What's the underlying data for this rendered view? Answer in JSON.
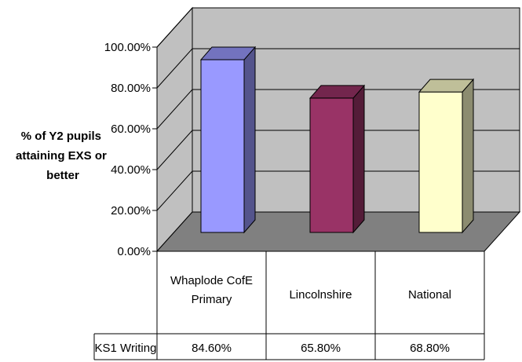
{
  "chart_data": {
    "type": "bar",
    "title": "",
    "xlabel": "",
    "ylabel_lines": [
      "% of Y2 pupils",
      "attaining EXS or",
      "better"
    ],
    "categories": [
      [
        "Whaplode CofE",
        "Primary"
      ],
      [
        "Lincolnshire"
      ],
      [
        "National"
      ]
    ],
    "series": [
      {
        "name": "KS1 Writing",
        "values": [
          84.6,
          65.8,
          68.8
        ],
        "value_labels": [
          "84.60%",
          "65.80%",
          "68.80%"
        ]
      }
    ],
    "bar_colors": [
      "#9999ff",
      "#993366",
      "#ffffcc"
    ],
    "ylim": [
      0,
      100
    ],
    "yticks": [
      "0.00%",
      "20.00%",
      "40.00%",
      "60.00%",
      "80.00%",
      "100.00%"
    ],
    "grid": true,
    "data_table": true,
    "projection": "3d-column"
  }
}
